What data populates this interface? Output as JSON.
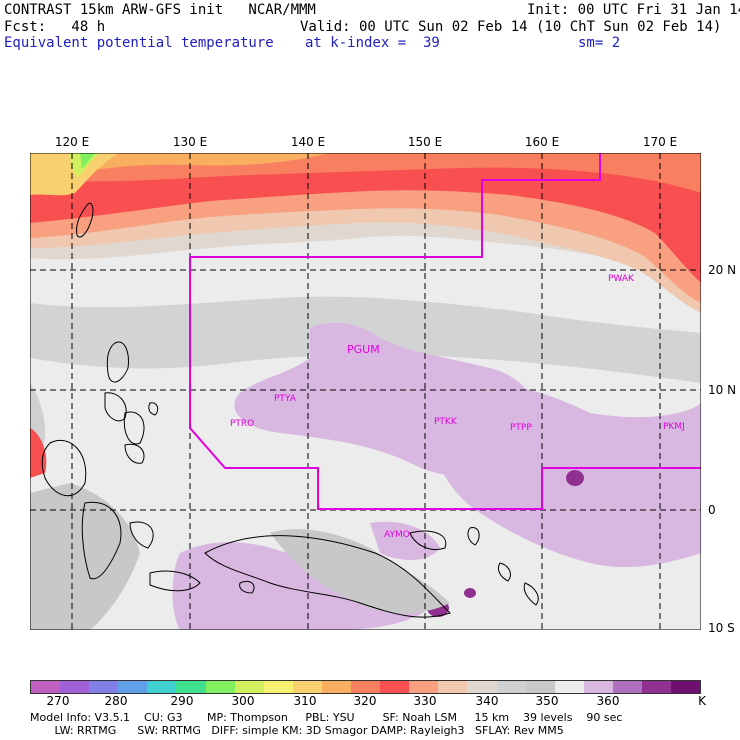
{
  "header": {
    "line1_left": "CONTRAST 15km ARW-GFS init   NCAR/MMM",
    "line1_right": "Init: 00 UTC Fri 31 Jan 14",
    "line2_left": "Fcst:   48 h",
    "line2_right": "Valid: 00 UTC Sun 02 Feb 14 (10 ChT Sun 02 Feb 14)",
    "line3_left": "Equivalent potential temperature",
    "line3_mid": "at k-index =  39",
    "line3_right": "sm= 2"
  },
  "map": {
    "lon_labels": [
      "120 E",
      "130 E",
      "140 E",
      "150 E",
      "160 E",
      "170 E"
    ],
    "lat_labels": [
      "20 N",
      "10 N",
      "0",
      "10 S"
    ],
    "stations": [
      "PWAK",
      "PGUM",
      "PTYA",
      "PTRO",
      "PTKK",
      "PTPP",
      "PKMJ",
      "AYMO"
    ],
    "colors": {
      "grid": "#000000",
      "boundary": "#e000e0",
      "coast": "#000000"
    }
  },
  "legend": {
    "labels": [
      "270",
      "280",
      "290",
      "300",
      "310",
      "320",
      "330",
      "340",
      "350",
      "360",
      "K"
    ],
    "colors": [
      "#c060c0",
      "#a060d8",
      "#8080e8",
      "#60a0e8",
      "#40d0d0",
      "#40e090",
      "#80f060",
      "#d0f060",
      "#f8f070",
      "#f8d070",
      "#f8b060",
      "#f88060",
      "#f85050",
      "#f8a080",
      "#f0c8b0",
      "#e0d8d0",
      "#d0d0d0",
      "#c8c8c8",
      "#ececec",
      "#d8b8e0",
      "#b070c0",
      "#903090",
      "#701070"
    ]
  },
  "footer": {
    "line1": "Model Info: V3.5.1    CU: G3       MP: Thompson     PBL: YSU        SF: Noah LSM     15 km    39 levels    90 sec",
    "line2": "       LW: RRTMG      SW: RRTMG   DIFF: simple KM: 3D Smagor DAMP: Rayleigh3   SFLAY: Rev MM5"
  }
}
